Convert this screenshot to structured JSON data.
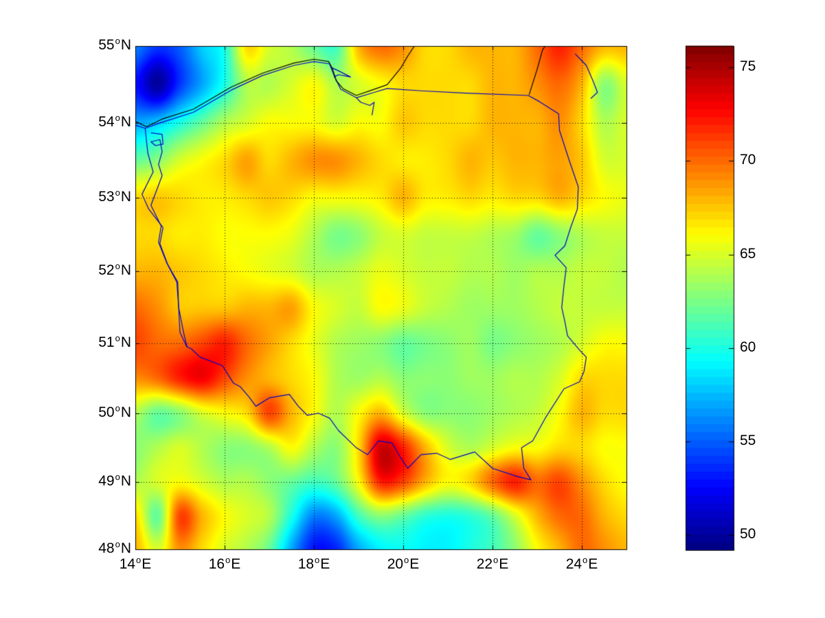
{
  "figure": {
    "background": "#ffffff"
  },
  "chart_data": {
    "type": "heatmap",
    "title": "",
    "projection": "mercator",
    "colormap": "jet",
    "grid_on": true,
    "x_axis": {
      "lim": [
        14,
        25
      ],
      "tick_lons": [
        14,
        16,
        18,
        20,
        22,
        24
      ],
      "tick_labels": [
        "14",
        "16",
        "18",
        "20",
        "22",
        "24"
      ],
      "suffix": "E",
      "degree_glyph": "o"
    },
    "y_axis": {
      "lim": [
        48,
        55
      ],
      "tick_lats": [
        55,
        54,
        53,
        52,
        51,
        50,
        49,
        48
      ],
      "tick_labels": [
        "55",
        "54",
        "53",
        "52",
        "51",
        "50",
        "49",
        "48"
      ],
      "suffix": "N",
      "degree_glyph": "o"
    },
    "colorbar": {
      "vmin": 49.2,
      "vmax": 76.15,
      "levels": 64,
      "tick_values": [
        75,
        70,
        65,
        60,
        55,
        50
      ],
      "tick_labels": [
        "75",
        "70",
        "65",
        "60",
        "55",
        "50"
      ]
    },
    "gridlines": {
      "style": "dotted",
      "color": "#000000",
      "x_lons": [
        16,
        18,
        20,
        22,
        24
      ],
      "y_lats": [
        54,
        53,
        52,
        51,
        50,
        49
      ]
    },
    "grid": {
      "lon_start": 14,
      "lon_step": 0.5,
      "lat_start": 55,
      "lat_step": -0.5,
      "ncols": 23,
      "nrows": 15,
      "values": [
        [
          56,
          54,
          55,
          58,
          60,
          67,
          65,
          64,
          62,
          61,
          68,
          70,
          69,
          67,
          67,
          68,
          68,
          68,
          70,
          72,
          70,
          68,
          68
        ],
        [
          53,
          50,
          54,
          57,
          60,
          64,
          64,
          65,
          66,
          64,
          65,
          66,
          67,
          67,
          67,
          67,
          68,
          68,
          69,
          70,
          68,
          63,
          65
        ],
        [
          57,
          58,
          60,
          62,
          64,
          65,
          66,
          66,
          66,
          65,
          66,
          66,
          67.5,
          67,
          67,
          67,
          68,
          68,
          68,
          69,
          67,
          64,
          65
        ],
        [
          62,
          63,
          65,
          66,
          67,
          68.5,
          67,
          68,
          69,
          69,
          68,
          67,
          66.5,
          66.5,
          67,
          68,
          67.5,
          68,
          68,
          68.5,
          67.5,
          65,
          65
        ],
        [
          67,
          67.5,
          67,
          66.5,
          66.5,
          67,
          67.5,
          67,
          66,
          66,
          66,
          66.5,
          68,
          66.5,
          66.5,
          67,
          66.5,
          67,
          67,
          68,
          67,
          66,
          65.5
        ],
        [
          67,
          67,
          66.5,
          66.5,
          66,
          66,
          66,
          65.5,
          64,
          62.5,
          63,
          64.5,
          65,
          64.5,
          64.5,
          64.5,
          64,
          63.5,
          62,
          63,
          64,
          64.5,
          64.5
        ],
        [
          68,
          68,
          67.5,
          67,
          66.5,
          66,
          65.5,
          65,
          64,
          64,
          64.5,
          65.5,
          65,
          64.5,
          64.5,
          64,
          64,
          63.5,
          64,
          64,
          64.5,
          64.5,
          64
        ],
        [
          70,
          69,
          67.5,
          67.5,
          67.5,
          68,
          68,
          68.5,
          66,
          65,
          64.5,
          66,
          65.5,
          64.5,
          64,
          63.5,
          63.5,
          63.5,
          64,
          64.5,
          64.5,
          64.5,
          64.5
        ],
        [
          71,
          70,
          70,
          71,
          72,
          70,
          68.5,
          67,
          65.5,
          64,
          63.5,
          63,
          62,
          62.5,
          63,
          63.5,
          62.5,
          63,
          63.5,
          64,
          65,
          66,
          66
        ],
        [
          69,
          70,
          72,
          73,
          71,
          69,
          68,
          67,
          66,
          64,
          63.5,
          64,
          63,
          63,
          63,
          63.5,
          63.5,
          64,
          64,
          65,
          67,
          67,
          67
        ],
        [
          64,
          62,
          63,
          65,
          66,
          67,
          71,
          68,
          66,
          64,
          66,
          68,
          65,
          63,
          63,
          63,
          63.5,
          64,
          64.5,
          66,
          68,
          67,
          67
        ],
        [
          63,
          64,
          65,
          64,
          63,
          63,
          64,
          66,
          64,
          63,
          67,
          74,
          72,
          68,
          65,
          64,
          65,
          66,
          66,
          67,
          67,
          66,
          66
        ],
        [
          64,
          65,
          66,
          65,
          64,
          64,
          63,
          62,
          61,
          62,
          66,
          72,
          71,
          68,
          66,
          67,
          70,
          72,
          70,
          71,
          69,
          67,
          66
        ],
        [
          67,
          62,
          71,
          68,
          66,
          65,
          64,
          60,
          56,
          57,
          61,
          63,
          62,
          60.5,
          60,
          60.5,
          62,
          65,
          68,
          70,
          70,
          68,
          67
        ],
        [
          68,
          65,
          69,
          67,
          65,
          64,
          62,
          57,
          53,
          53.5,
          57,
          59,
          59.5,
          59,
          59,
          60,
          61,
          63,
          66,
          68,
          70,
          69,
          68
        ]
      ]
    },
    "overlays": {
      "coastline_color": "#000000",
      "water_color": "#0000c8",
      "coastlines": [
        [
          [
            14.0,
            54.02
          ],
          [
            14.25,
            53.95
          ],
          [
            14.6,
            54.05
          ],
          [
            15.3,
            54.18
          ],
          [
            16.15,
            54.47
          ],
          [
            16.85,
            54.65
          ],
          [
            17.55,
            54.78
          ],
          [
            18.0,
            54.83
          ],
          [
            18.33,
            54.8
          ],
          [
            18.42,
            54.7
          ],
          [
            18.5,
            54.55
          ],
          [
            18.65,
            54.45
          ],
          [
            18.95,
            54.36
          ],
          [
            19.3,
            54.43
          ],
          [
            19.64,
            54.5
          ],
          [
            19.95,
            54.72
          ],
          [
            20.1,
            54.87
          ],
          [
            20.25,
            55.0
          ]
        ],
        [
          [
            22.82,
            54.37
          ],
          [
            23.0,
            54.7
          ],
          [
            23.12,
            54.95
          ],
          [
            23.18,
            55.0
          ]
        ]
      ],
      "borders": [
        [
          [
            14.22,
            53.93
          ],
          [
            14.5,
            53.99
          ],
          [
            15.3,
            54.14
          ],
          [
            16.15,
            54.43
          ],
          [
            16.85,
            54.62
          ],
          [
            17.55,
            54.75
          ],
          [
            18.0,
            54.8
          ],
          [
            18.35,
            54.77
          ],
          [
            18.45,
            54.62
          ],
          [
            18.6,
            54.44
          ],
          [
            18.95,
            54.33
          ],
          [
            19.35,
            54.4
          ],
          [
            19.64,
            54.45
          ],
          [
            20.4,
            54.42
          ],
          [
            21.4,
            54.39
          ],
          [
            22.8,
            54.36
          ],
          [
            23.05,
            54.28
          ],
          [
            23.48,
            54.12
          ],
          [
            23.5,
            53.9
          ],
          [
            23.72,
            53.5
          ],
          [
            23.92,
            53.15
          ],
          [
            23.9,
            52.85
          ],
          [
            23.75,
            52.6
          ],
          [
            23.62,
            52.35
          ],
          [
            23.4,
            52.22
          ],
          [
            23.65,
            52.05
          ],
          [
            23.6,
            51.8
          ],
          [
            23.55,
            51.5
          ],
          [
            23.62,
            51.3
          ],
          [
            23.68,
            51.1
          ],
          [
            23.95,
            50.9
          ],
          [
            24.1,
            50.8
          ],
          [
            24.05,
            50.6
          ],
          [
            23.95,
            50.45
          ],
          [
            23.6,
            50.35
          ],
          [
            23.2,
            49.95
          ],
          [
            22.9,
            49.6
          ],
          [
            22.65,
            49.5
          ],
          [
            22.7,
            49.2
          ],
          [
            22.86,
            49.03
          ],
          [
            22.55,
            49.08
          ],
          [
            22.0,
            49.2
          ],
          [
            21.6,
            49.44
          ],
          [
            21.05,
            49.33
          ],
          [
            20.75,
            49.42
          ],
          [
            20.4,
            49.4
          ],
          [
            20.1,
            49.2
          ],
          [
            19.9,
            49.4
          ],
          [
            19.75,
            49.57
          ],
          [
            19.45,
            49.6
          ],
          [
            19.2,
            49.4
          ],
          [
            18.95,
            49.5
          ],
          [
            18.55,
            49.75
          ],
          [
            18.35,
            49.93
          ],
          [
            18.1,
            50.0
          ],
          [
            17.85,
            49.97
          ],
          [
            17.65,
            50.1
          ],
          [
            17.45,
            50.27
          ],
          [
            17.0,
            50.22
          ],
          [
            16.7,
            50.1
          ],
          [
            16.55,
            50.23
          ],
          [
            16.35,
            50.38
          ],
          [
            16.2,
            50.43
          ],
          [
            15.95,
            50.68
          ],
          [
            15.45,
            50.8
          ],
          [
            15.25,
            50.92
          ],
          [
            15.15,
            50.95
          ],
          [
            15.0,
            51.15
          ],
          [
            14.97,
            51.5
          ],
          [
            14.95,
            51.85
          ],
          [
            14.72,
            52.1
          ],
          [
            14.55,
            52.38
          ],
          [
            14.62,
            52.6
          ],
          [
            14.3,
            52.85
          ],
          [
            14.15,
            53.05
          ],
          [
            14.4,
            53.35
          ],
          [
            14.28,
            53.6
          ],
          [
            14.22,
            53.93
          ]
        ]
      ],
      "rivers": [
        [
          [
            14.0,
            53.97
          ],
          [
            14.22,
            53.93
          ]
        ],
        [
          [
            14.35,
            53.87
          ],
          [
            14.6,
            53.85
          ],
          [
            14.62,
            53.72
          ],
          [
            14.45,
            53.7
          ],
          [
            14.35,
            53.75
          ],
          [
            14.55,
            53.78
          ],
          [
            14.6,
            53.62
          ],
          [
            14.52,
            53.45
          ],
          [
            14.6,
            53.3
          ],
          [
            14.35,
            52.9
          ],
          [
            14.58,
            52.62
          ],
          [
            14.52,
            52.4
          ],
          [
            14.7,
            52.12
          ],
          [
            14.93,
            51.85
          ],
          [
            14.97,
            51.5
          ],
          [
            15.08,
            51.15
          ],
          [
            15.16,
            50.94
          ]
        ],
        [
          [
            18.4,
            54.72
          ],
          [
            18.55,
            54.68
          ],
          [
            18.82,
            54.6
          ],
          [
            18.55,
            54.63
          ],
          [
            18.45,
            54.6
          ]
        ],
        [
          [
            18.95,
            54.33
          ],
          [
            19.05,
            54.27
          ],
          [
            19.25,
            54.23
          ],
          [
            19.35,
            54.27
          ],
          [
            19.3,
            54.1
          ]
        ],
        [
          [
            23.85,
            54.9
          ],
          [
            24.1,
            54.75
          ],
          [
            24.25,
            54.55
          ],
          [
            24.35,
            54.4
          ],
          [
            24.2,
            54.32
          ]
        ]
      ]
    }
  }
}
